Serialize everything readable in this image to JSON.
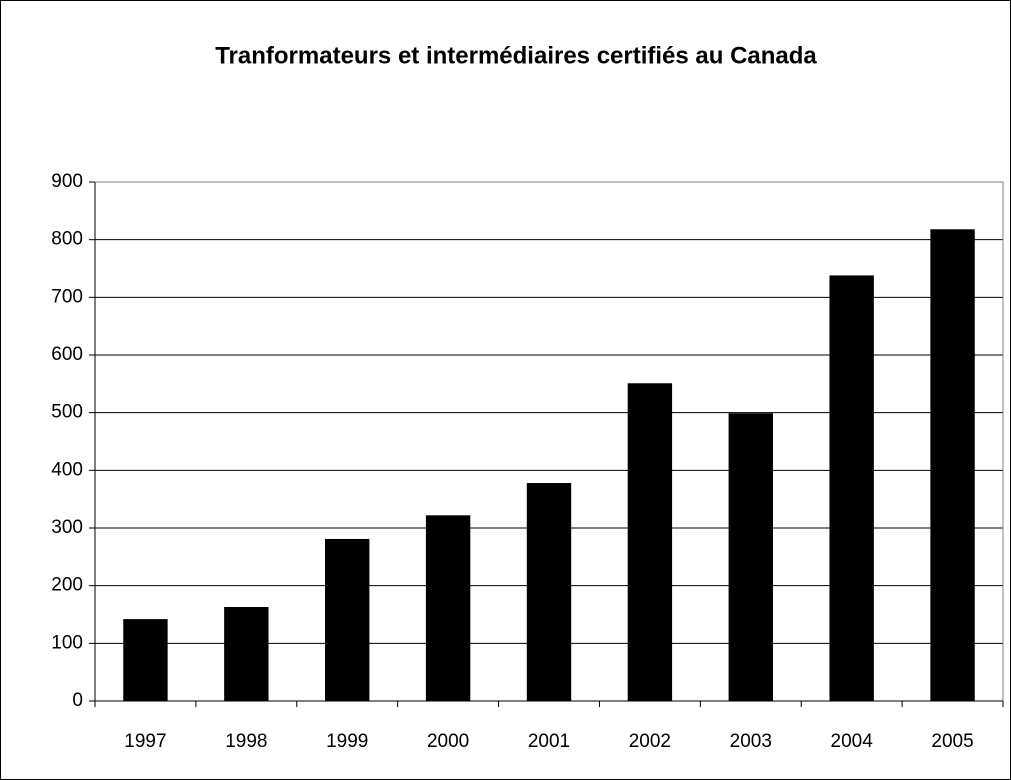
{
  "chart_data": {
    "type": "bar",
    "title": "Tranformateurs et intermédiaires certifiés au Canada",
    "categories": [
      "1997",
      "1998",
      "1999",
      "2000",
      "2001",
      "2002",
      "2003",
      "2004",
      "2005"
    ],
    "values": [
      142,
      163,
      281,
      322,
      378,
      551,
      499,
      738,
      818
    ],
    "color": "#000000",
    "ylim": [
      0,
      900
    ],
    "yticks": [
      0,
      100,
      200,
      300,
      400,
      500,
      600,
      700,
      800,
      900
    ],
    "grid": true
  }
}
